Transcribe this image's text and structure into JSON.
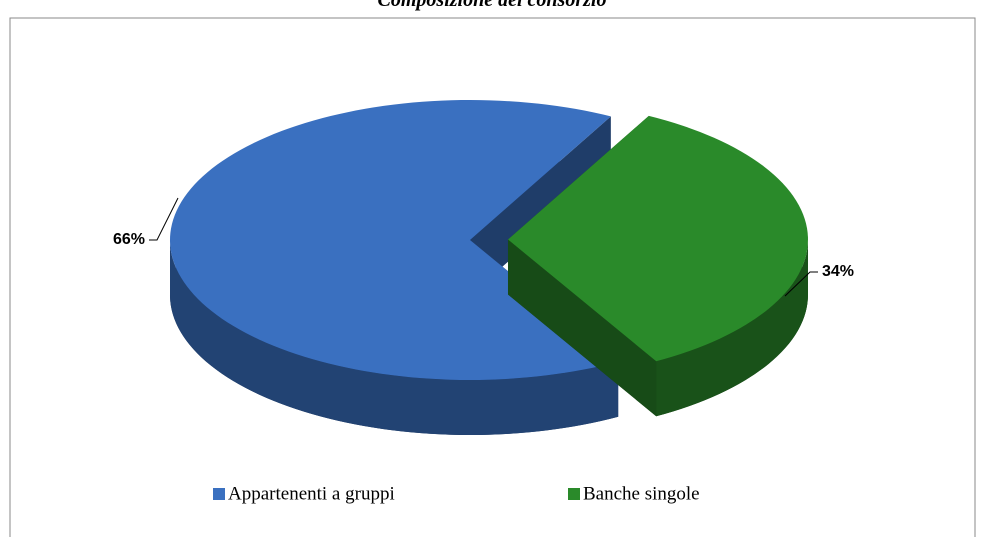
{
  "chart_data": {
    "type": "pie",
    "title": "Composizione del consorzio",
    "categories": [
      "Appartenenti a gruppi",
      "Banche singole"
    ],
    "values": [
      66,
      34
    ],
    "value_labels": [
      "66%",
      "34%"
    ],
    "colors": [
      "#3a70c0",
      "#2a8a2a"
    ],
    "legend": "bottom"
  }
}
